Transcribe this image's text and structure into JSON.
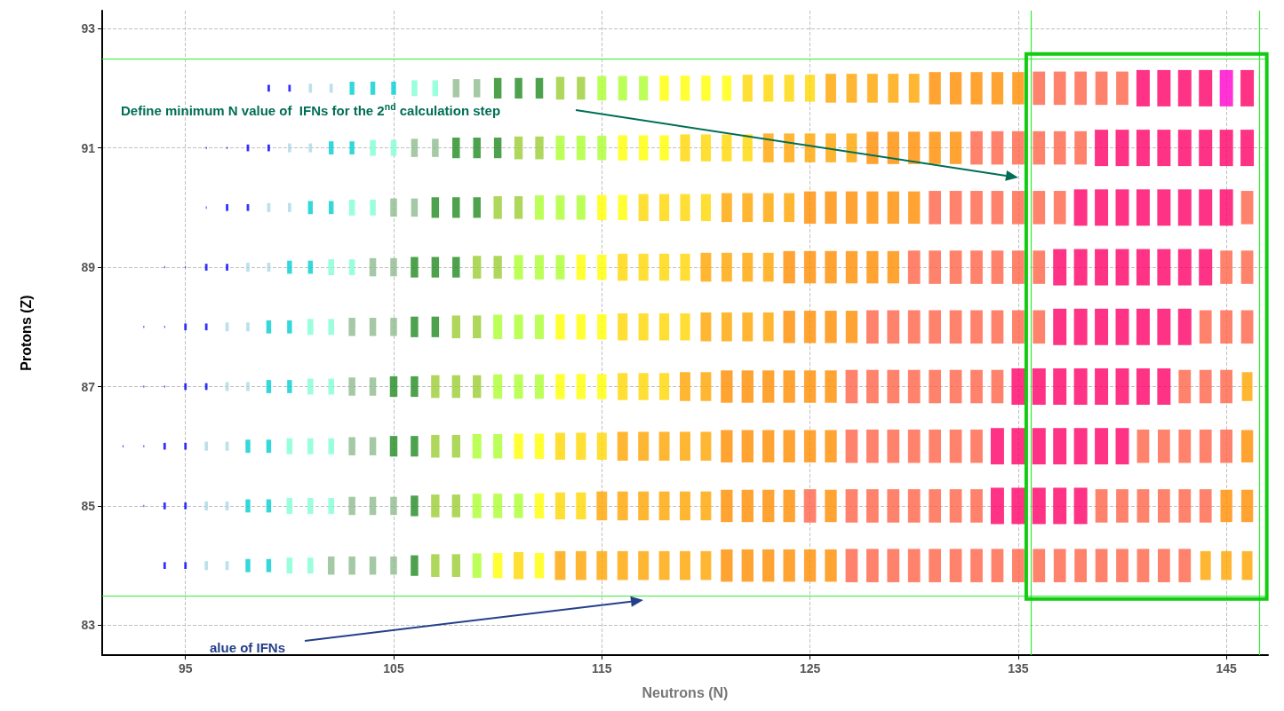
{
  "chart_data": {
    "type": "bubble",
    "xlabel": "Neutrons (N)",
    "ylabel": "Protons (Z)",
    "marker": "square",
    "grid": true,
    "xlim": [
      91,
      147
    ],
    "xticks": [
      95,
      105,
      115,
      125,
      135,
      145
    ],
    "ylim": [
      82.5,
      93.3
    ],
    "yticks": [
      83,
      85,
      87,
      89,
      91,
      93
    ],
    "x": [
      92,
      93,
      94,
      95,
      96,
      97,
      98,
      99,
      100,
      101,
      102,
      103,
      104,
      105,
      106,
      107,
      108,
      109,
      110,
      111,
      112,
      113,
      114,
      115,
      116,
      117,
      118,
      119,
      120,
      121,
      122,
      123,
      124,
      125,
      126,
      127,
      128,
      129,
      130,
      131,
      132,
      133,
      134,
      135,
      136,
      137,
      138,
      139,
      140,
      141,
      142,
      143,
      144,
      145,
      146
    ],
    "ref_lines": [
      {
        "axis": "y",
        "value": 92.5,
        "color": "#33ee33"
      },
      {
        "axis": "y",
        "value": 83.5,
        "color": "#33ee33"
      },
      {
        "axis": "x",
        "value": 135.6,
        "color": "#33ee33"
      },
      {
        "axis": "x",
        "value": 146.6,
        "color": "#33ee33"
      }
    ],
    "annotations": [
      "Define minimum N value of  IFNs for the 2$^{nd}$ calculation step",
      "alue of IFNs"
    ],
    "series": [
      {
        "values": [
          null,
          null,
          null,
          null,
          null,
          null,
          null,
          92,
          92,
          92,
          92,
          92,
          92,
          92,
          92,
          92,
          92,
          92,
          92,
          92,
          92,
          92,
          92,
          92,
          92,
          92,
          92,
          92,
          92,
          92,
          92,
          92,
          92,
          92,
          92,
          92,
          92,
          92,
          92,
          92,
          92,
          92,
          92,
          92,
          92,
          92,
          92,
          92,
          92,
          92,
          92,
          92,
          92,
          92,
          92
        ],
        "colors": [
          null,
          null,
          null,
          null,
          null,
          null,
          null,
          "#0000ff",
          "#0000ff",
          "#add8e6",
          "#add8e6",
          "#00ced1",
          "#00ced1",
          "#00ced1",
          "#7fffd4",
          "#7fffd4",
          "#8fbc8f",
          "#8fbc8f",
          "#228b22",
          "#228b22",
          "#228b22",
          "#9acd32",
          "#9acd32",
          "#adff2f",
          "#adff2f",
          "#adff2f",
          "#ffff00",
          "#ffff00",
          "#ffff00",
          "#ffff00",
          "#ffd700",
          "#ffd700",
          "#ffd700",
          "#ffd700",
          "#ffa500",
          "#ffa500",
          "#ffa500",
          "#ffa500",
          "#ffa500",
          "#ff8c00",
          "#ff8c00",
          "#ff8c00",
          "#ff8c00",
          "#ff8c00",
          "#ff6347",
          "#ff6347",
          "#ff6347",
          "#ff6347",
          "#ff6347",
          "#ff0066",
          "#ff0066",
          "#ff0066",
          "#ff0066",
          "#ff00cc",
          "#ff0066"
        ],
        "sizes": [
          null,
          null,
          null,
          null,
          null,
          null,
          null,
          0.035,
          0.035,
          0.06,
          0.06,
          0.13,
          0.13,
          0.13,
          0.19,
          0.19,
          0.25,
          0.25,
          0.32,
          0.32,
          0.32,
          0.39,
          0.39,
          0.45,
          0.45,
          0.45,
          0.48,
          0.48,
          0.48,
          0.48,
          0.55,
          0.55,
          0.55,
          0.55,
          0.63,
          0.63,
          0.63,
          0.63,
          0.63,
          0.79,
          0.79,
          0.79,
          0.79,
          0.79,
          0.84,
          0.84,
          0.84,
          0.84,
          0.84,
          1,
          1,
          1,
          1,
          1,
          1
        ]
      },
      {
        "values": [
          null,
          null,
          null,
          null,
          91,
          91,
          91,
          91,
          91,
          91,
          91,
          91,
          91,
          91,
          91,
          91,
          91,
          91,
          91,
          91,
          91,
          91,
          91,
          91,
          91,
          91,
          91,
          91,
          91,
          91,
          91,
          91,
          91,
          91,
          91,
          91,
          91,
          91,
          91,
          91,
          91,
          91,
          91,
          91,
          91,
          91,
          91,
          91,
          91,
          91,
          91,
          91,
          91,
          91,
          91
        ],
        "colors": [
          null,
          null,
          null,
          null,
          "#0000ff",
          "#0000ff",
          "#0000ff",
          "#0000ff",
          "#add8e6",
          "#add8e6",
          "#00ced1",
          "#00ced1",
          "#7fffd4",
          "#7fffd4",
          "#8fbc8f",
          "#8fbc8f",
          "#228b22",
          "#228b22",
          "#228b22",
          "#9acd32",
          "#9acd32",
          "#adff2f",
          "#adff2f",
          "#adff2f",
          "#ffff00",
          "#ffff00",
          "#ffff00",
          "#ffd700",
          "#ffd700",
          "#ffd700",
          "#ffd700",
          "#ffa500",
          "#ffa500",
          "#ffa500",
          "#ffa500",
          "#ffa500",
          "#ff8c00",
          "#ff8c00",
          "#ff8c00",
          "#ff8c00",
          "#ff8c00",
          "#ff6347",
          "#ff6347",
          "#ff6347",
          "#ff6347",
          "#ff6347",
          "#ff6347",
          "#ff0066",
          "#ff0066",
          "#ff0066",
          "#ff0066",
          "#ff0066",
          "#ff0066",
          "#ff0066",
          "#ff0066"
        ],
        "sizes": [
          null,
          null,
          null,
          null,
          0.004,
          0.004,
          0.035,
          0.035,
          0.06,
          0.06,
          0.13,
          0.13,
          0.19,
          0.19,
          0.25,
          0.25,
          0.32,
          0.32,
          0.32,
          0.39,
          0.39,
          0.45,
          0.45,
          0.45,
          0.48,
          0.48,
          0.48,
          0.55,
          0.55,
          0.55,
          0.55,
          0.63,
          0.63,
          0.63,
          0.63,
          0.63,
          0.79,
          0.79,
          0.79,
          0.79,
          0.79,
          0.84,
          0.84,
          0.84,
          0.84,
          0.84,
          0.84,
          1,
          1,
          1,
          1,
          1,
          1,
          1,
          1
        ]
      },
      {
        "values": [
          null,
          null,
          null,
          null,
          90,
          90,
          90,
          90,
          90,
          90,
          90,
          90,
          90,
          90,
          90,
          90,
          90,
          90,
          90,
          90,
          90,
          90,
          90,
          90,
          90,
          90,
          90,
          90,
          90,
          90,
          90,
          90,
          90,
          90,
          90,
          90,
          90,
          90,
          90,
          90,
          90,
          90,
          90,
          90,
          90,
          90,
          90,
          90,
          90,
          90,
          90,
          90,
          90,
          90,
          90
        ],
        "colors": [
          null,
          null,
          null,
          null,
          "#0000ff",
          "#0000ff",
          "#0000ff",
          "#add8e6",
          "#add8e6",
          "#00ced1",
          "#00ced1",
          "#7fffd4",
          "#7fffd4",
          "#8fbc8f",
          "#8fbc8f",
          "#228b22",
          "#228b22",
          "#228b22",
          "#9acd32",
          "#9acd32",
          "#adff2f",
          "#adff2f",
          "#adff2f",
          "#ffff00",
          "#ffff00",
          "#ffd700",
          "#ffd700",
          "#ffd700",
          "#ffd700",
          "#ffa500",
          "#ffa500",
          "#ffa500",
          "#ffa500",
          "#ff8c00",
          "#ff8c00",
          "#ff8c00",
          "#ff8c00",
          "#ff8c00",
          "#ff8c00",
          "#ff6347",
          "#ff6347",
          "#ff6347",
          "#ff6347",
          "#ff6347",
          "#ff6347",
          "#ff6347",
          "#ff0066",
          "#ff0066",
          "#ff0066",
          "#ff0066",
          "#ff0066",
          "#ff0066",
          "#ff0066",
          "#ff0066",
          "#ff6347"
        ],
        "sizes": [
          null,
          null,
          null,
          null,
          0.004,
          0.035,
          0.035,
          0.06,
          0.06,
          0.13,
          0.13,
          0.19,
          0.19,
          0.25,
          0.25,
          0.32,
          0.32,
          0.32,
          0.39,
          0.39,
          0.45,
          0.45,
          0.45,
          0.48,
          0.48,
          0.55,
          0.55,
          0.55,
          0.55,
          0.63,
          0.63,
          0.63,
          0.63,
          0.79,
          0.79,
          0.79,
          0.79,
          0.79,
          0.79,
          0.84,
          0.84,
          0.84,
          0.84,
          0.84,
          0.84,
          0.84,
          1,
          1,
          1,
          1,
          1,
          1,
          1,
          1,
          0.84
        ]
      },
      {
        "values": [
          null,
          null,
          89,
          89,
          89,
          89,
          89,
          89,
          89,
          89,
          89,
          89,
          89,
          89,
          89,
          89,
          89,
          89,
          89,
          89,
          89,
          89,
          89,
          89,
          89,
          89,
          89,
          89,
          89,
          89,
          89,
          89,
          89,
          89,
          89,
          89,
          89,
          89,
          89,
          89,
          89,
          89,
          89,
          89,
          89,
          89,
          89,
          89,
          89,
          89,
          89,
          89,
          89,
          89,
          89
        ],
        "colors": [
          null,
          null,
          "#0000ff",
          "#0000ff",
          "#0000ff",
          "#0000ff",
          "#add8e6",
          "#add8e6",
          "#00ced1",
          "#00ced1",
          "#7fffd4",
          "#7fffd4",
          "#8fbc8f",
          "#8fbc8f",
          "#228b22",
          "#228b22",
          "#228b22",
          "#9acd32",
          "#9acd32",
          "#adff2f",
          "#adff2f",
          "#adff2f",
          "#ffff00",
          "#ffff00",
          "#ffd700",
          "#ffd700",
          "#ffd700",
          "#ffd700",
          "#ffa500",
          "#ffa500",
          "#ffa500",
          "#ffa500",
          "#ff8c00",
          "#ff8c00",
          "#ff8c00",
          "#ff8c00",
          "#ff8c00",
          "#ff8c00",
          "#ff6347",
          "#ff6347",
          "#ff6347",
          "#ff6347",
          "#ff6347",
          "#ff6347",
          "#ff6347",
          "#ff0066",
          "#ff0066",
          "#ff0066",
          "#ff0066",
          "#ff0066",
          "#ff0066",
          "#ff0066",
          "#ff0066",
          "#ff6347",
          "#ff6347"
        ],
        "sizes": [
          null,
          null,
          0.004,
          0.004,
          0.035,
          0.035,
          0.06,
          0.06,
          0.13,
          0.13,
          0.19,
          0.19,
          0.25,
          0.25,
          0.32,
          0.32,
          0.32,
          0.39,
          0.39,
          0.45,
          0.45,
          0.45,
          0.48,
          0.48,
          0.55,
          0.55,
          0.55,
          0.55,
          0.63,
          0.63,
          0.63,
          0.63,
          0.79,
          0.79,
          0.79,
          0.79,
          0.79,
          0.79,
          0.84,
          0.84,
          0.84,
          0.84,
          0.84,
          0.84,
          0.84,
          1,
          1,
          1,
          1,
          1,
          1,
          1,
          1,
          0.84,
          0.84
        ]
      },
      {
        "values": [
          null,
          88,
          88,
          88,
          88,
          88,
          88,
          88,
          88,
          88,
          88,
          88,
          88,
          88,
          88,
          88,
          88,
          88,
          88,
          88,
          88,
          88,
          88,
          88,
          88,
          88,
          88,
          88,
          88,
          88,
          88,
          88,
          88,
          88,
          88,
          88,
          88,
          88,
          88,
          88,
          88,
          88,
          88,
          88,
          88,
          88,
          88,
          88,
          88,
          88,
          88,
          88,
          88,
          88,
          88
        ],
        "colors": [
          null,
          "#0000ff",
          "#0000ff",
          "#0000ff",
          "#0000ff",
          "#add8e6",
          "#add8e6",
          "#00ced1",
          "#00ced1",
          "#7fffd4",
          "#7fffd4",
          "#8fbc8f",
          "#8fbc8f",
          "#8fbc8f",
          "#228b22",
          "#228b22",
          "#9acd32",
          "#9acd32",
          "#adff2f",
          "#adff2f",
          "#adff2f",
          "#ffff00",
          "#ffff00",
          "#ffff00",
          "#ffd700",
          "#ffd700",
          "#ffd700",
          "#ffd700",
          "#ffa500",
          "#ffa500",
          "#ffa500",
          "#ffa500",
          "#ff8c00",
          "#ff8c00",
          "#ff8c00",
          "#ff8c00",
          "#ff6347",
          "#ff6347",
          "#ff6347",
          "#ff6347",
          "#ff6347",
          "#ff6347",
          "#ff6347",
          "#ff6347",
          "#ff6347",
          "#ff0066",
          "#ff0066",
          "#ff0066",
          "#ff0066",
          "#ff0066",
          "#ff0066",
          "#ff0066",
          "#ff6347",
          "#ff6347",
          "#ff6347"
        ],
        "sizes": [
          null,
          0.004,
          0.004,
          0.035,
          0.035,
          0.06,
          0.06,
          0.13,
          0.13,
          0.19,
          0.19,
          0.25,
          0.25,
          0.25,
          0.32,
          0.32,
          0.39,
          0.39,
          0.45,
          0.45,
          0.45,
          0.48,
          0.48,
          0.48,
          0.55,
          0.55,
          0.55,
          0.55,
          0.63,
          0.63,
          0.63,
          0.63,
          0.79,
          0.79,
          0.79,
          0.79,
          0.84,
          0.84,
          0.84,
          0.84,
          0.84,
          0.84,
          0.84,
          0.84,
          0.84,
          1,
          1,
          1,
          1,
          1,
          1,
          1,
          0.84,
          0.84,
          0.84
        ]
      },
      {
        "values": [
          null,
          87,
          87,
          87,
          87,
          87,
          87,
          87,
          87,
          87,
          87,
          87,
          87,
          87,
          87,
          87,
          87,
          87,
          87,
          87,
          87,
          87,
          87,
          87,
          87,
          87,
          87,
          87,
          87,
          87,
          87,
          87,
          87,
          87,
          87,
          87,
          87,
          87,
          87,
          87,
          87,
          87,
          87,
          87,
          87,
          87,
          87,
          87,
          87,
          87,
          87,
          87,
          87,
          87,
          87
        ],
        "colors": [
          null,
          "#0000ff",
          "#0000ff",
          "#0000ff",
          "#0000ff",
          "#add8e6",
          "#add8e6",
          "#00ced1",
          "#00ced1",
          "#7fffd4",
          "#7fffd4",
          "#8fbc8f",
          "#8fbc8f",
          "#228b22",
          "#228b22",
          "#9acd32",
          "#9acd32",
          "#9acd32",
          "#adff2f",
          "#adff2f",
          "#adff2f",
          "#ffff00",
          "#ffff00",
          "#ffff00",
          "#ffd700",
          "#ffd700",
          "#ffd700",
          "#ffa500",
          "#ffa500",
          "#ff8c00",
          "#ff8c00",
          "#ff8c00",
          "#ff8c00",
          "#ff8c00",
          "#ff8c00",
          "#ff6347",
          "#ff6347",
          "#ff6347",
          "#ff6347",
          "#ff6347",
          "#ff6347",
          "#ff6347",
          "#ff6347",
          "#ff0066",
          "#ff0066",
          "#ff0066",
          "#ff0066",
          "#ff0066",
          "#ff0066",
          "#ff0066",
          "#ff0066",
          "#ff6347",
          "#ff6347",
          "#ff6347",
          "#ffa500"
        ],
        "sizes": [
          null,
          0.004,
          0.004,
          0.035,
          0.035,
          0.06,
          0.06,
          0.13,
          0.13,
          0.19,
          0.19,
          0.25,
          0.25,
          0.32,
          0.32,
          0.39,
          0.39,
          0.39,
          0.45,
          0.45,
          0.45,
          0.48,
          0.48,
          0.48,
          0.55,
          0.55,
          0.55,
          0.63,
          0.63,
          0.79,
          0.79,
          0.79,
          0.79,
          0.79,
          0.79,
          0.84,
          0.84,
          0.84,
          0.84,
          0.84,
          0.84,
          0.84,
          0.84,
          1,
          1,
          1,
          1,
          1,
          1,
          1,
          1,
          0.84,
          0.84,
          0.84,
          0.63
        ]
      },
      {
        "values": [
          86,
          86,
          86,
          86,
          86,
          86,
          86,
          86,
          86,
          86,
          86,
          86,
          86,
          86,
          86,
          86,
          86,
          86,
          86,
          86,
          86,
          86,
          86,
          86,
          86,
          86,
          86,
          86,
          86,
          86,
          86,
          86,
          86,
          86,
          86,
          86,
          86,
          86,
          86,
          86,
          86,
          86,
          86,
          86,
          86,
          86,
          86,
          86,
          86,
          86,
          86,
          86,
          86,
          86,
          86
        ],
        "colors": [
          "#0000ff",
          "#0000ff",
          "#0000ff",
          "#0000ff",
          "#add8e6",
          "#add8e6",
          "#00ced1",
          "#00ced1",
          "#7fffd4",
          "#7fffd4",
          "#7fffd4",
          "#8fbc8f",
          "#8fbc8f",
          "#228b22",
          "#228b22",
          "#9acd32",
          "#9acd32",
          "#adff2f",
          "#adff2f",
          "#ffff00",
          "#ffff00",
          "#ffd700",
          "#ffd700",
          "#ffd700",
          "#ffa500",
          "#ffa500",
          "#ffa500",
          "#ffa500",
          "#ffa500",
          "#ff8c00",
          "#ff8c00",
          "#ff8c00",
          "#ff8c00",
          "#ff8c00",
          "#ff8c00",
          "#ff6347",
          "#ff6347",
          "#ff6347",
          "#ff6347",
          "#ff6347",
          "#ff6347",
          "#ff6347",
          "#ff0066",
          "#ff0066",
          "#ff0066",
          "#ff0066",
          "#ff0066",
          "#ff0066",
          "#ff0066",
          "#ff6347",
          "#ff6347",
          "#ff6347",
          "#ff6347",
          "#ff6347",
          "#ff8c00"
        ],
        "sizes": [
          0.004,
          0.004,
          0.035,
          0.035,
          0.06,
          0.06,
          0.13,
          0.13,
          0.19,
          0.19,
          0.19,
          0.25,
          0.25,
          0.32,
          0.32,
          0.39,
          0.39,
          0.45,
          0.45,
          0.48,
          0.48,
          0.55,
          0.55,
          0.55,
          0.63,
          0.63,
          0.63,
          0.63,
          0.63,
          0.79,
          0.79,
          0.79,
          0.79,
          0.79,
          0.79,
          0.84,
          0.84,
          0.84,
          0.84,
          0.84,
          0.84,
          0.84,
          1,
          1,
          1,
          1,
          1,
          1,
          1,
          0.84,
          0.84,
          0.84,
          0.84,
          0.84,
          0.79
        ]
      },
      {
        "values": [
          null,
          85,
          85,
          85,
          85,
          85,
          85,
          85,
          85,
          85,
          85,
          85,
          85,
          85,
          85,
          85,
          85,
          85,
          85,
          85,
          85,
          85,
          85,
          85,
          85,
          85,
          85,
          85,
          85,
          85,
          85,
          85,
          85,
          85,
          85,
          85,
          85,
          85,
          85,
          85,
          85,
          85,
          85,
          85,
          85,
          85,
          85,
          85,
          85,
          85,
          85,
          85,
          85,
          85,
          85
        ],
        "colors": [
          null,
          "#0000ff",
          "#0000ff",
          "#0000ff",
          "#add8e6",
          "#add8e6",
          "#00ced1",
          "#00ced1",
          "#7fffd4",
          "#7fffd4",
          "#7fffd4",
          "#8fbc8f",
          "#8fbc8f",
          "#8fbc8f",
          "#228b22",
          "#9acd32",
          "#9acd32",
          "#adff2f",
          "#adff2f",
          "#adff2f",
          "#ffff00",
          "#ffd700",
          "#ffd700",
          "#ffa500",
          "#ffa500",
          "#ffa500",
          "#ffa500",
          "#ffa500",
          "#ffa500",
          "#ff8c00",
          "#ff8c00",
          "#ff8c00",
          "#ff8c00",
          "#ff6347",
          "#ff8c00",
          "#ff6347",
          "#ff6347",
          "#ff6347",
          "#ff6347",
          "#ff6347",
          "#ff6347",
          "#ff6347",
          "#ff0066",
          "#ff0066",
          "#ff0066",
          "#ff0066",
          "#ff0066",
          "#ff6347",
          "#ff6347",
          "#ff6347",
          "#ff6347",
          "#ff6347",
          "#ff6347",
          "#ff8c00",
          "#ff8c00"
        ],
        "sizes": [
          null,
          0.004,
          0.035,
          0.035,
          0.06,
          0.06,
          0.13,
          0.13,
          0.19,
          0.19,
          0.19,
          0.25,
          0.25,
          0.25,
          0.32,
          0.39,
          0.39,
          0.45,
          0.45,
          0.45,
          0.48,
          0.55,
          0.55,
          0.63,
          0.63,
          0.63,
          0.63,
          0.63,
          0.63,
          0.79,
          0.79,
          0.79,
          0.79,
          0.84,
          0.79,
          0.84,
          0.84,
          0.84,
          0.84,
          0.84,
          0.84,
          0.84,
          1,
          1,
          1,
          1,
          1,
          0.84,
          0.84,
          0.84,
          0.84,
          0.84,
          0.84,
          0.79,
          0.79
        ]
      },
      {
        "values": [
          null,
          null,
          84,
          84,
          84,
          84,
          84,
          84,
          84,
          84,
          84,
          84,
          84,
          84,
          84,
          84,
          84,
          84,
          84,
          84,
          84,
          84,
          84,
          84,
          84,
          84,
          84,
          84,
          84,
          84,
          84,
          84,
          84,
          84,
          84,
          84,
          84,
          84,
          84,
          84,
          84,
          84,
          84,
          84,
          84,
          84,
          84,
          84,
          84,
          84,
          84,
          84,
          84,
          84,
          84
        ],
        "colors": [
          null,
          null,
          "#0000ff",
          "#0000ff",
          "#add8e6",
          "#add8e6",
          "#00ced1",
          "#00ced1",
          "#7fffd4",
          "#7fffd4",
          "#8fbc8f",
          "#8fbc8f",
          "#8fbc8f",
          "#8fbc8f",
          "#228b22",
          "#9acd32",
          "#9acd32",
          "#adff2f",
          "#ffff00",
          "#ffd700",
          "#ffff00",
          "#ffa500",
          "#ffa500",
          "#ffa500",
          "#ffa500",
          "#ffa500",
          "#ffa500",
          "#ffa500",
          "#ffa500",
          "#ff8c00",
          "#ff8c00",
          "#ff8c00",
          "#ff8c00",
          "#ff8c00",
          "#ff8c00",
          "#ff6347",
          "#ff6347",
          "#ff6347",
          "#ff6347",
          "#ff6347",
          "#ff6347",
          "#ff6347",
          "#ff6347",
          "#ff6347",
          "#ff6347",
          "#ff6347",
          "#ff6347",
          "#ff6347",
          "#ff6347",
          "#ff6347",
          "#ff6347",
          "#ff6347",
          "#ffa500",
          "#ffa500",
          "#ffa500"
        ],
        "sizes": [
          null,
          null,
          0.035,
          0.035,
          0.06,
          0.06,
          0.13,
          0.13,
          0.19,
          0.19,
          0.25,
          0.25,
          0.25,
          0.25,
          0.32,
          0.39,
          0.39,
          0.45,
          0.48,
          0.55,
          0.48,
          0.63,
          0.63,
          0.63,
          0.63,
          0.63,
          0.63,
          0.63,
          0.63,
          0.79,
          0.79,
          0.79,
          0.79,
          0.79,
          0.79,
          0.84,
          0.84,
          0.84,
          0.84,
          0.84,
          0.84,
          0.84,
          0.84,
          0.84,
          0.84,
          0.84,
          0.84,
          0.84,
          0.84,
          0.84,
          0.84,
          0.84,
          0.63,
          0.63,
          0.63
        ]
      }
    ]
  }
}
